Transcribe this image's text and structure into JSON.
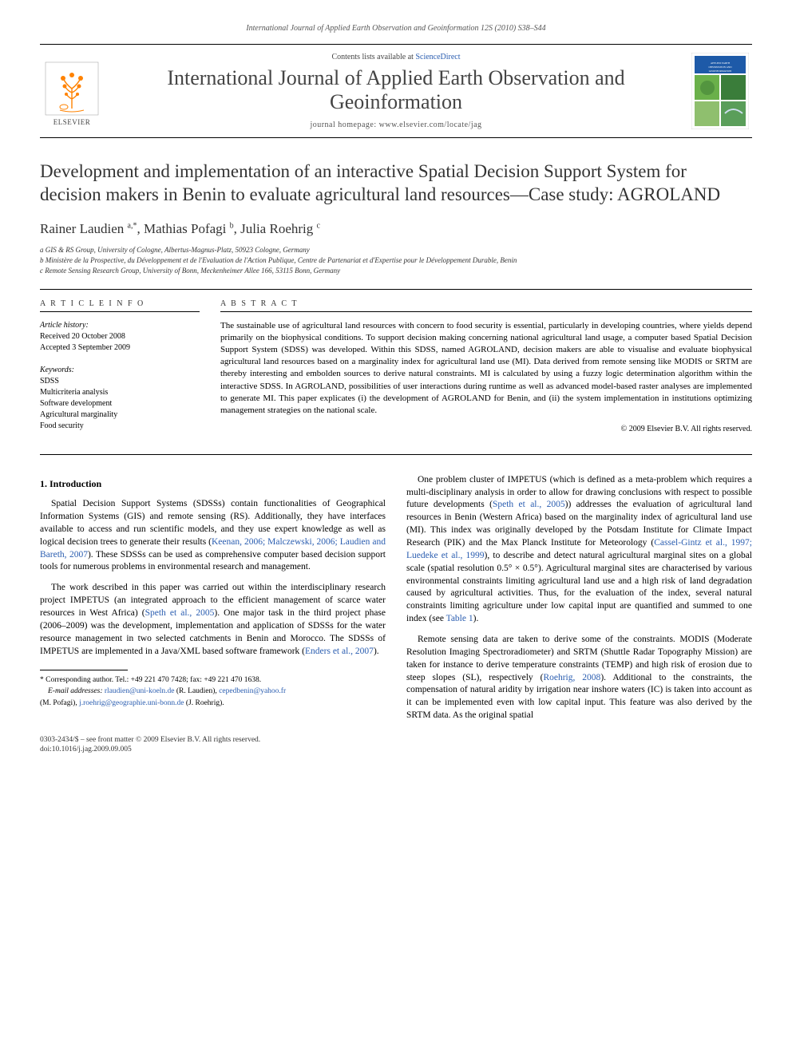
{
  "running_head": "International Journal of Applied Earth Observation and Geoinformation 12S (2010) S38–S44",
  "masthead": {
    "contents_prefix": "Contents lists available at ",
    "contents_link": "ScienceDirect",
    "journal": "International Journal of Applied Earth Observation and Geoinformation",
    "homepage_label": "journal homepage: www.elsevier.com/locate/jag",
    "publisher": "ELSEVIER"
  },
  "title": "Development and implementation of an interactive Spatial Decision Support System for decision makers in Benin to evaluate agricultural land resources—Case study: AGROLAND",
  "authors_html": "Rainer Laudien <sup>a,*</sup>, Mathias Pofagi <sup>b</sup>, Julia Roehrig <sup>c</sup>",
  "affiliations": [
    "a GIS & RS Group, University of Cologne, Albertus-Magnus-Platz, 50923 Cologne, Germany",
    "b Ministère de la Prospective, du Développement et de l'Evaluation de l'Action Publique, Centre de Partenariat et d'Expertise pour le Développement Durable, Benin",
    "c Remote Sensing Research Group, University of Bonn, Meckenheimer Allee 166, 53115 Bonn, Germany"
  ],
  "article_info": {
    "heading": "A R T I C L E   I N F O",
    "history_label": "Article history:",
    "received": "Received 20 October 2008",
    "accepted": "Accepted 3 September 2009",
    "keywords_label": "Keywords:",
    "keywords": [
      "SDSS",
      "Multicriteria analysis",
      "Software development",
      "Agricultural marginality",
      "Food security"
    ]
  },
  "abstract": {
    "heading": "A B S T R A C T",
    "body": "The sustainable use of agricultural land resources with concern to food security is essential, particularly in developing countries, where yields depend primarily on the biophysical conditions. To support decision making concerning national agricultural land usage, a computer based Spatial Decision Support System (SDSS) was developed. Within this SDSS, named AGROLAND, decision makers are able to visualise and evaluate biophysical agricultural land resources based on a marginality index for agricultural land use (MI). Data derived from remote sensing like MODIS or SRTM are thereby interesting and embolden sources to derive natural constraints. MI is calculated by using a fuzzy logic determination algorithm within the interactive SDSS. In AGROLAND, possibilities of user interactions during runtime as well as advanced model-based raster analyses are implemented to generate MI. This paper explicates (i) the development of AGROLAND for Benin, and (ii) the system implementation in institutions optimizing management strategies on the national scale.",
    "copyright": "© 2009 Elsevier B.V. All rights reserved."
  },
  "body": {
    "section_heading": "1. Introduction",
    "p1_a": "Spatial Decision Support Systems (SDSSs) contain functionalities of Geographical Information Systems (GIS) and remote sensing (RS). Additionally, they have interfaces available to access and run scientific models, and they use expert knowledge as well as logical decision trees to generate their results (",
    "p1_ref": "Keenan, 2006; Malczewski, 2006; Laudien and Bareth, 2007",
    "p1_b": "). These SDSSs can be used as comprehensive computer based decision support tools for numerous problems in environmental research and management.",
    "p2_a": "The work described in this paper was carried out within the interdisciplinary research project IMPETUS (an integrated approach to the efficient management of scarce water resources in West Africa) (",
    "p2_ref1": "Speth et al., 2005",
    "p2_b": "). One major task in the third project phase (2006–2009) was the development, implementation and application of SDSSs for the water resource management in two selected catchments in Benin and Morocco. The SDSSs of IMPETUS are implemented in a Java/XML based software framework (",
    "p2_ref2": "Enders et al., 2007",
    "p2_c": ").",
    "p3_a": "One problem cluster of IMPETUS (which is defined as a meta-problem which requires a multi-disciplinary analysis in order to allow for drawing conclusions with respect to possible future developments (",
    "p3_ref1": "Speth et al., 2005",
    "p3_b": ")) addresses the evaluation of agricultural land resources in Benin (Western Africa) based on the marginality index of agricultural land use (MI). This index was originally developed by the Potsdam Institute for Climate Impact Research (PIK) and the Max Planck Institute for Meteorology (",
    "p3_ref2": "Cassel-Gintz et al., 1997; Luedeke et al., 1999",
    "p3_c": "), to describe and detect natural agricultural marginal sites on a global scale (spatial resolution 0.5° × 0.5°). Agricultural marginal sites are characterised by various environmental constraints limiting agricultural land use and a high risk of land degradation caused by agricultural activities. Thus, for the evaluation of the index, several natural constraints limiting agriculture under low capital input are quantified and summed to one index (see ",
    "p3_ref3": "Table 1",
    "p3_d": ").",
    "p4_a": "Remote sensing data are taken to derive some of the constraints. MODIS (Moderate Resolution Imaging Spectroradiometer) and SRTM (Shuttle Radar Topography Mission) are taken for instance to derive temperature constraints (TEMP) and high risk of erosion due to steep slopes (SL), respectively (",
    "p4_ref1": "Roehrig, 2008",
    "p4_b": "). Additional to the constraints, the compensation of natural aridity by irrigation near inshore waters (IC) is taken into account as it can be implemented even with low capital input. This feature was also derived by the SRTM data. As the original spatial"
  },
  "footnotes": {
    "corr": "* Corresponding author. Tel.: +49 221 470 7428; fax: +49 221 470 1638.",
    "emails_label": "E-mail addresses:",
    "e1": "rlaudien@uni-koeln.de",
    "e1_who": " (R. Laudien), ",
    "e2": "cepedbenin@yahoo.fr",
    "e2_who": " (M. Pofagi), ",
    "e3": "j.roehrig@geographie.uni-bonn.de",
    "e3_who": " (J. Roehrig)."
  },
  "footer": {
    "line1": "0303-2434/$ – see front matter © 2009 Elsevier B.V. All rights reserved.",
    "line2": "doi:10.1016/j.jag.2009.09.005"
  },
  "colors": {
    "link": "#2a5db0",
    "text": "#000000",
    "muted": "#555555",
    "elsevier_orange": "#ff8200",
    "cover_blue": "#1e5aa8",
    "cover_green1": "#6ab04a",
    "cover_green2": "#3a7d3a"
  }
}
